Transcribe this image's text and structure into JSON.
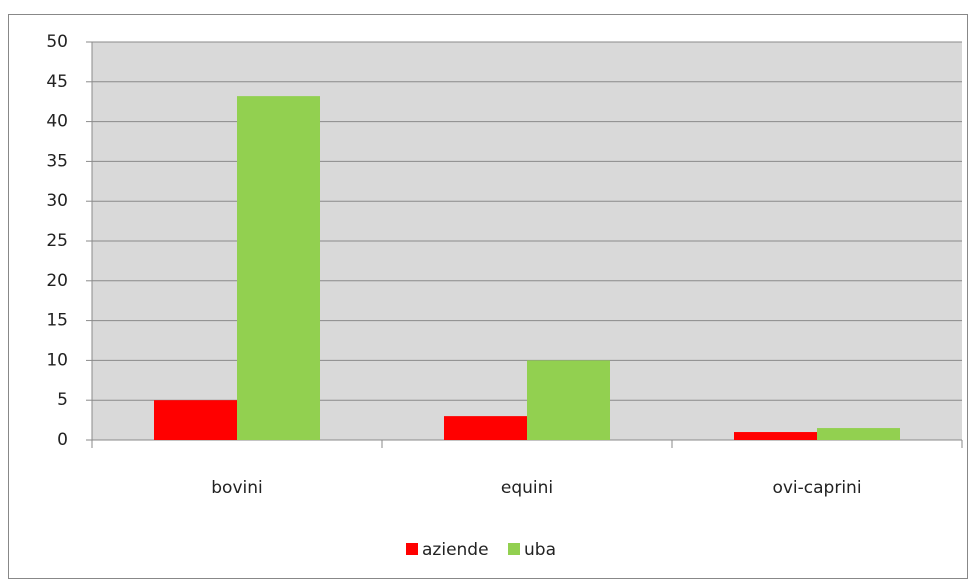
{
  "chart_data": {
    "type": "bar",
    "categories": [
      "bovini",
      "equini",
      "ovi-caprini"
    ],
    "series": [
      {
        "name": "aziende",
        "color": "#ff0000",
        "values": [
          5,
          3,
          1
        ]
      },
      {
        "name": "uba",
        "color": "#92d050",
        "values": [
          43.2,
          10,
          1.5
        ]
      }
    ],
    "ylim": [
      0,
      50
    ],
    "yticks": [
      0,
      5,
      10,
      15,
      20,
      25,
      30,
      35,
      40,
      45,
      50
    ],
    "grid": true,
    "plot_background": "#d9d9d9",
    "legend": "bottom"
  }
}
